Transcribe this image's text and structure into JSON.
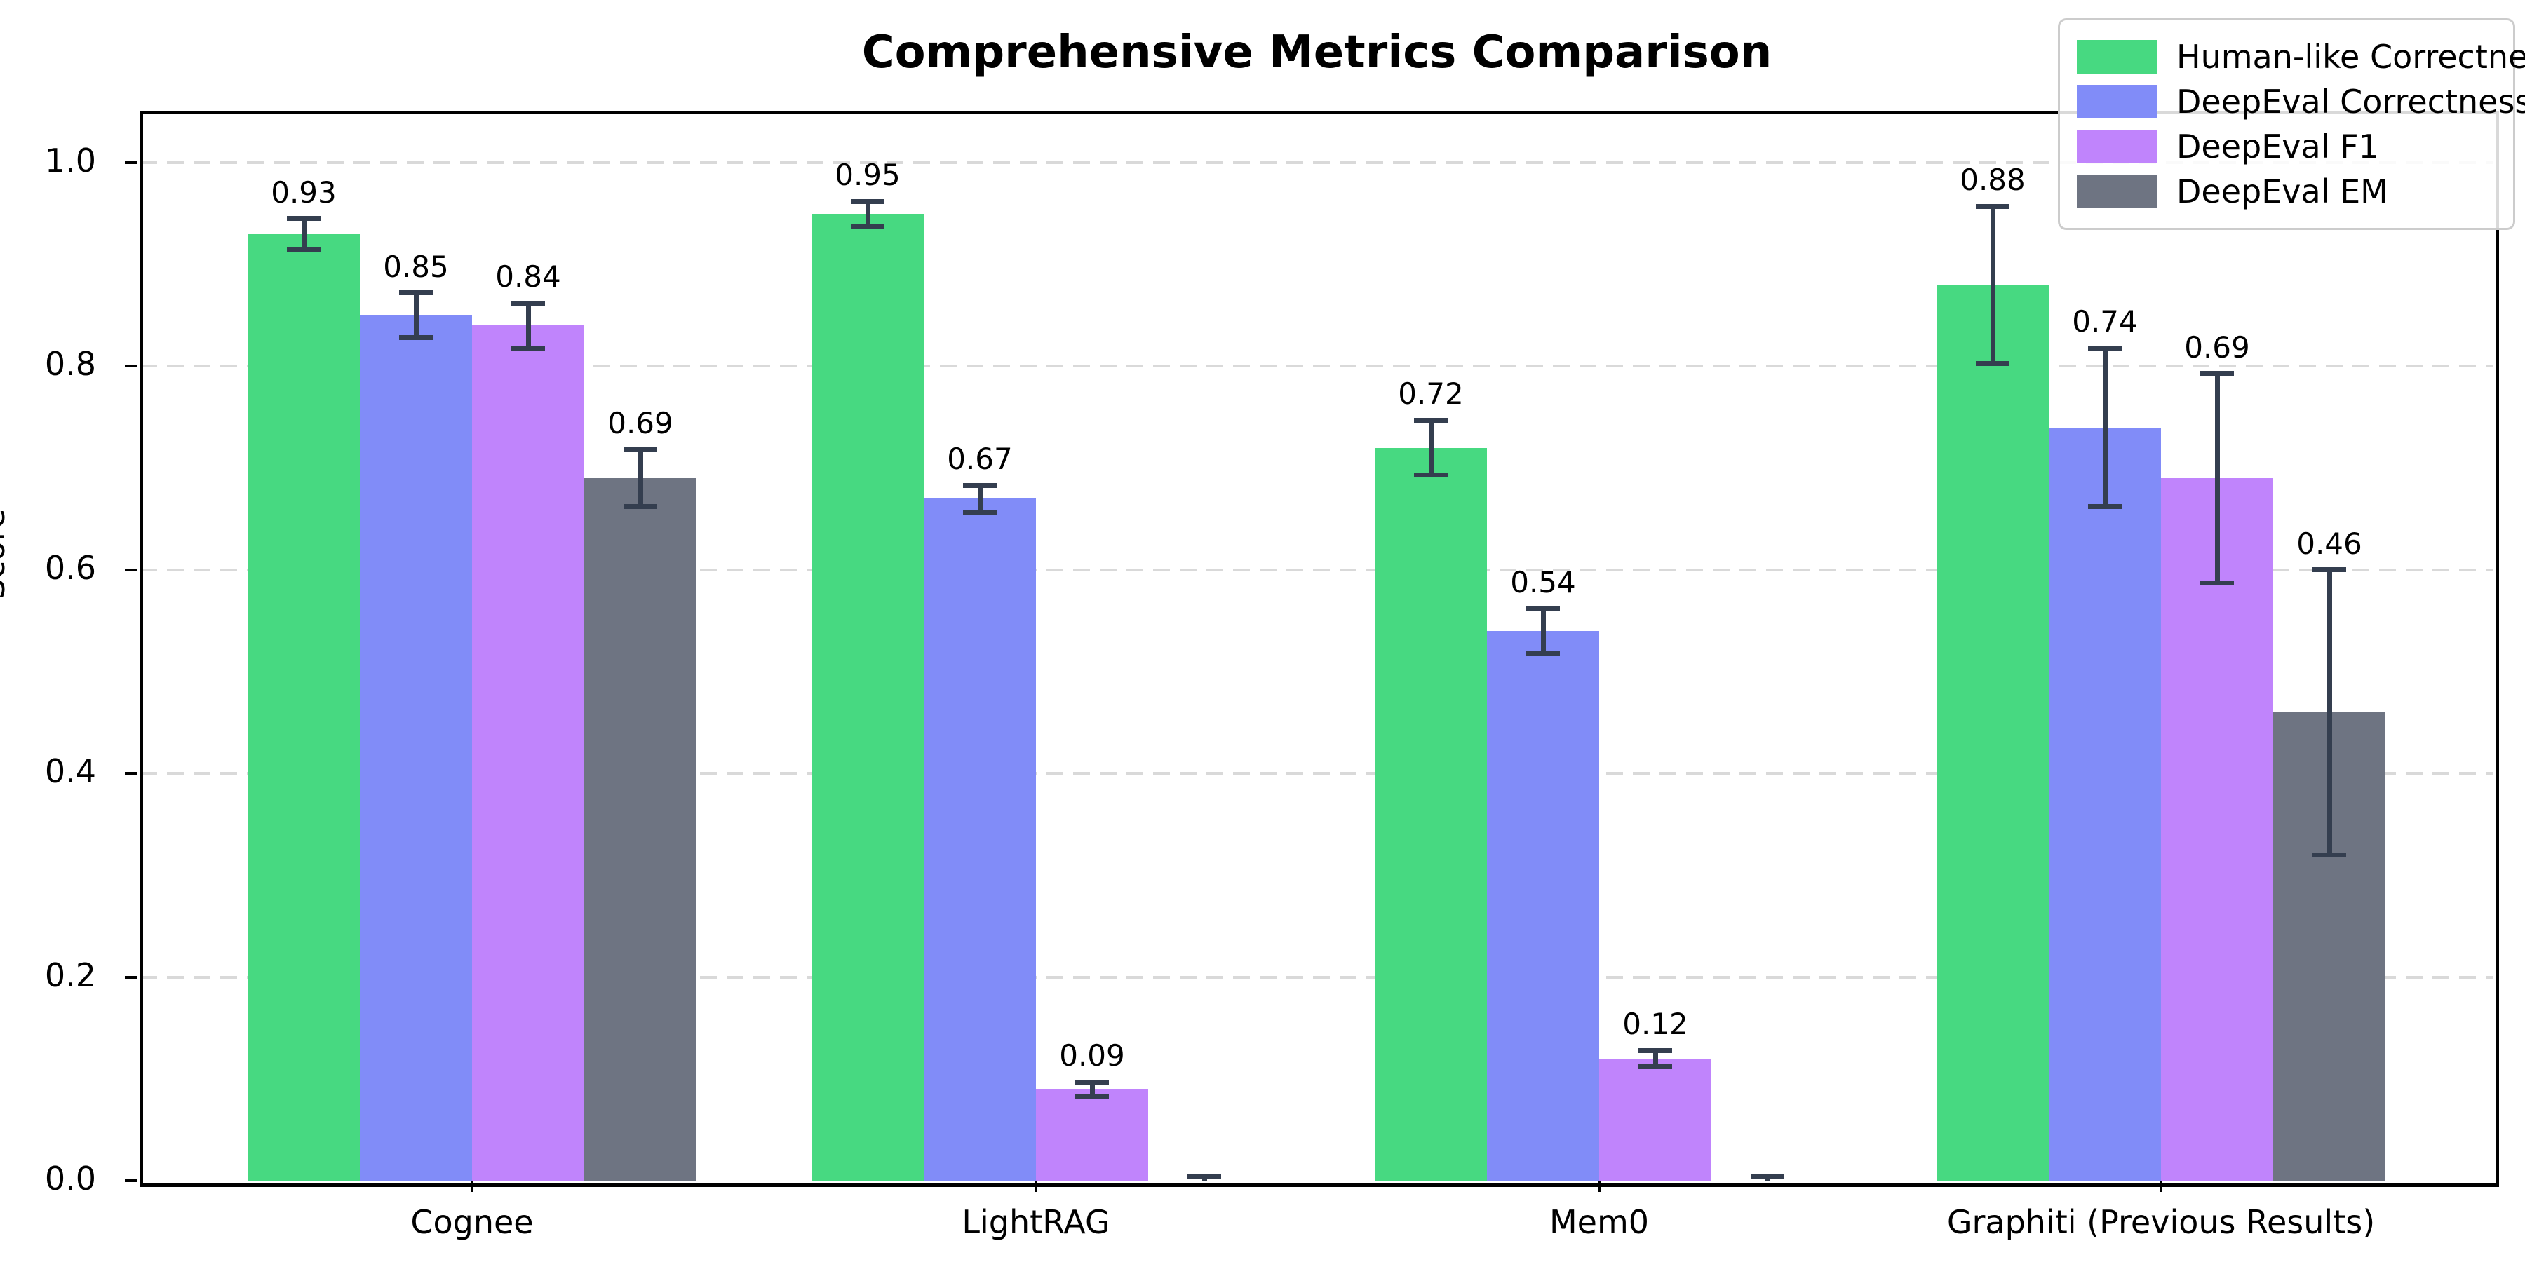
{
  "title": "Comprehensive Metrics Comparison",
  "chart_data": {
    "type": "bar",
    "title": "Comprehensive Metrics Comparison",
    "xlabel": "",
    "ylabel": "Score",
    "categories": [
      "Cognee",
      "LightRAG",
      "Mem0",
      "Graphiti (Previous Results)"
    ],
    "series": [
      {
        "name": "Human-like Correctness",
        "color": "#47d981",
        "values": [
          0.93,
          0.95,
          0.72,
          0.88
        ],
        "errors": [
          0.015,
          0.012,
          0.027,
          0.077
        ],
        "labels": [
          "0.93",
          "0.95",
          "0.72",
          "0.88"
        ]
      },
      {
        "name": "DeepEval Correctness",
        "color": "#818cf8",
        "values": [
          0.85,
          0.67,
          0.54,
          0.74
        ],
        "errors": [
          0.022,
          0.013,
          0.022,
          0.078
        ],
        "labels": [
          "0.85",
          "0.67",
          "0.54",
          "0.74"
        ]
      },
      {
        "name": "DeepEval F1",
        "color": "#c084fc",
        "values": [
          0.84,
          0.09,
          0.12,
          0.69
        ],
        "errors": [
          0.022,
          0.007,
          0.008,
          0.103
        ],
        "labels": [
          "0.84",
          "0.09",
          "0.12",
          "0.69"
        ]
      },
      {
        "name": "DeepEval EM",
        "color": "#6e7482",
        "values": [
          0.69,
          0.0,
          0.0,
          0.46
        ],
        "errors": [
          0.028,
          0.004,
          0.004,
          0.14
        ],
        "labels": [
          "0.69",
          "",
          "",
          "0.46"
        ]
      }
    ],
    "yticks": [
      "0.0",
      "0.2",
      "0.4",
      "0.6",
      "0.8",
      "1.0"
    ],
    "ytick_values": [
      0.0,
      0.2,
      0.4,
      0.6,
      0.8,
      1.0
    ],
    "ylim": [
      0.0,
      1.051
    ],
    "grid": "horizontal-dashed",
    "legend_position": "upper-right",
    "error_bar_color": "#343e4f",
    "grid_color": "#d9d9d9"
  }
}
